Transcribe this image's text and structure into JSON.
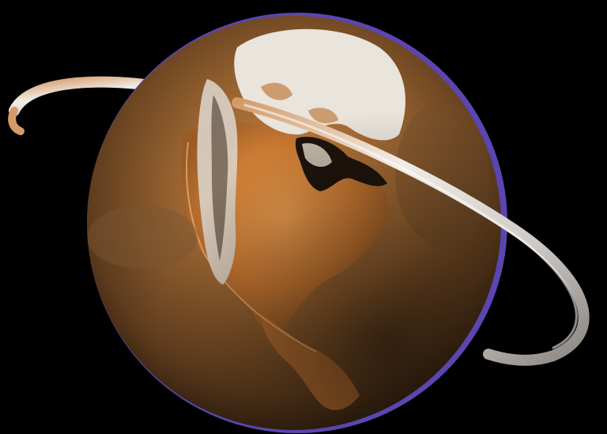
{
  "scene": {
    "subject": "planet-earth-globe-with-ring",
    "colors": {
      "background": "#000000",
      "ocean_dark": "#4a2e16",
      "ocean_mid": "#8a5a2c",
      "land_glow": "#d8843a",
      "ice": "#e9e4dc",
      "mountains": "#d9d2c6",
      "atmosphere_rim": "#5b45b0",
      "ring_light": "#f1ece6",
      "ring_shadow": "#8b8580",
      "ring_warm": "#d49a68"
    }
  }
}
